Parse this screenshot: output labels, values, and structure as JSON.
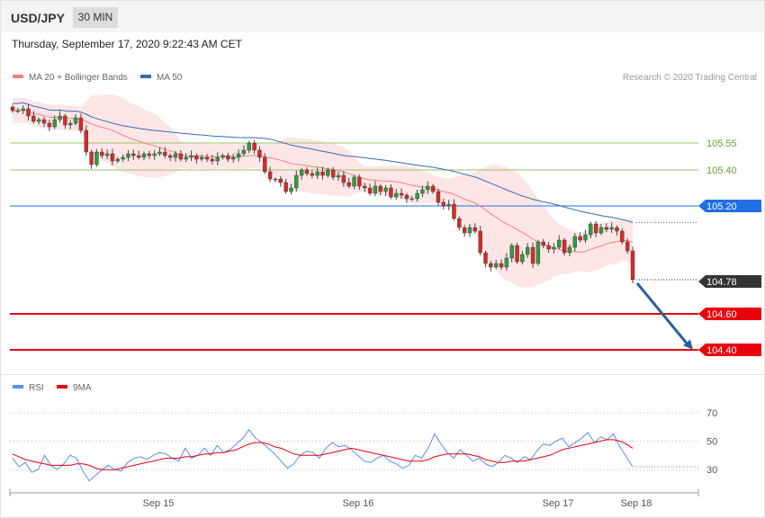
{
  "header": {
    "symbol": "USD/JPY",
    "timeframe": "30 MIN"
  },
  "datetime": "Thursday, September 17, 2020 9:22:43 AM CET",
  "legend": {
    "ma20": {
      "label": "MA 20 + Bollinger Bands",
      "color": "#f08080"
    },
    "ma50": {
      "label": "MA 50",
      "color": "#3a6ab0"
    }
  },
  "credit": "Research © 2020 Trading Central",
  "rsi_legend": {
    "rsi": {
      "label": "RSI",
      "color": "#5b8def"
    },
    "ma9": {
      "label": "9MA",
      "color": "#e8000b"
    }
  },
  "chart_data": [
    {
      "type": "candlestick",
      "title": "USD/JPY",
      "x_labels": [
        "Sep 15",
        "Sep 16",
        "Sep 17",
        "Sep 18"
      ],
      "ylim": [
        104.32,
        105.87
      ],
      "current_price": {
        "value": 104.78,
        "label": "104.78",
        "color": "#333333"
      },
      "levels": [
        {
          "value": 105.55,
          "label": "105.55",
          "style": "resistance",
          "color": "#9ac467"
        },
        {
          "value": 105.4,
          "label": "105.40",
          "style": "resistance",
          "color": "#9ac467"
        },
        {
          "value": 105.2,
          "label": "105.20",
          "style": "pivot",
          "color": "#1f6fe5"
        },
        {
          "value": 104.6,
          "label": "104.60",
          "style": "support",
          "color": "#e8000b"
        },
        {
          "value": 104.4,
          "label": "104.40",
          "style": "support",
          "color": "#e8000b"
        }
      ],
      "target_arrow": {
        "from": 104.77,
        "to": 104.4,
        "color": "#2f5f9c"
      },
      "close": [
        105.73,
        105.73,
        105.74,
        105.7,
        105.67,
        105.68,
        105.66,
        105.64,
        105.68,
        105.7,
        105.65,
        105.66,
        105.69,
        105.62,
        105.5,
        105.43,
        105.5,
        105.48,
        105.49,
        105.45,
        105.46,
        105.47,
        105.49,
        105.48,
        105.47,
        105.49,
        105.48,
        105.49,
        105.5,
        105.48,
        105.47,
        105.49,
        105.46,
        105.47,
        105.48,
        105.46,
        105.47,
        105.46,
        105.45,
        105.47,
        105.48,
        105.46,
        105.47,
        105.49,
        105.51,
        105.55,
        105.51,
        105.47,
        105.39,
        105.35,
        105.35,
        105.33,
        105.28,
        105.3,
        105.37,
        105.4,
        105.38,
        105.37,
        105.39,
        105.37,
        105.4,
        105.36,
        105.37,
        105.33,
        105.31,
        105.36,
        105.31,
        105.3,
        105.27,
        105.31,
        105.28,
        105.3,
        105.25,
        105.27,
        105.26,
        105.24,
        105.24,
        105.27,
        105.29,
        105.31,
        105.28,
        105.22,
        105.2,
        105.21,
        105.13,
        105.08,
        105.05,
        105.08,
        105.06,
        104.94,
        104.88,
        104.86,
        104.88,
        104.86,
        104.91,
        104.98,
        104.89,
        104.93,
        104.97,
        104.88,
        105.0,
        104.98,
        104.96,
        104.97,
        105.01,
        104.94,
        104.97,
        105.03,
        105.01,
        105.04,
        105.1,
        105.05,
        105.08,
        105.07,
        105.08,
        105.06,
        105.0,
        104.95,
        104.79
      ]
    },
    {
      "type": "line",
      "title": "RSI",
      "ylim": [
        20,
        80
      ],
      "yticks": [
        30,
        50,
        70
      ],
      "series": [
        {
          "name": "RSI",
          "values": [
            38,
            32,
            35,
            28,
            30,
            40,
            33,
            30,
            34,
            40,
            38,
            29,
            22,
            26,
            30,
            33,
            30,
            29,
            35,
            38,
            39,
            37,
            40,
            42,
            41,
            38,
            36,
            45,
            38,
            40,
            45,
            40,
            47,
            42,
            44,
            48,
            52,
            58,
            52,
            49,
            45,
            41,
            36,
            31,
            34,
            40,
            43,
            42,
            38,
            45,
            49,
            46,
            47,
            44,
            40,
            36,
            35,
            38,
            40,
            36,
            34,
            31,
            33,
            40,
            38,
            45,
            55,
            48,
            42,
            38,
            44,
            40,
            36,
            38,
            34,
            32,
            35,
            40,
            38,
            35,
            39,
            37,
            43,
            48,
            47,
            50,
            52,
            46,
            49,
            52,
            56,
            49,
            53,
            51,
            55,
            46,
            39,
            32
          ]
        },
        {
          "name": "9MA",
          "values": [
            41,
            39,
            37,
            36,
            35,
            34,
            33,
            33,
            33,
            33,
            34,
            34,
            33,
            31,
            30,
            30,
            30,
            31,
            32,
            33,
            34,
            35,
            36,
            37,
            38,
            38,
            38,
            39,
            39,
            40,
            41,
            41,
            42,
            42,
            43,
            44,
            46,
            48,
            49,
            49,
            48,
            46,
            45,
            43,
            41,
            40,
            40,
            40,
            40,
            41,
            42,
            43,
            44,
            45,
            44,
            43,
            42,
            41,
            40,
            39,
            38,
            37,
            36,
            36,
            36,
            37,
            39,
            40,
            41,
            41,
            41,
            41,
            40,
            39,
            37,
            36,
            35,
            35,
            36,
            36,
            36,
            37,
            38,
            39,
            40,
            42,
            44,
            45,
            46,
            47,
            48,
            49,
            50,
            51,
            51,
            50,
            48,
            45
          ]
        }
      ]
    }
  ]
}
